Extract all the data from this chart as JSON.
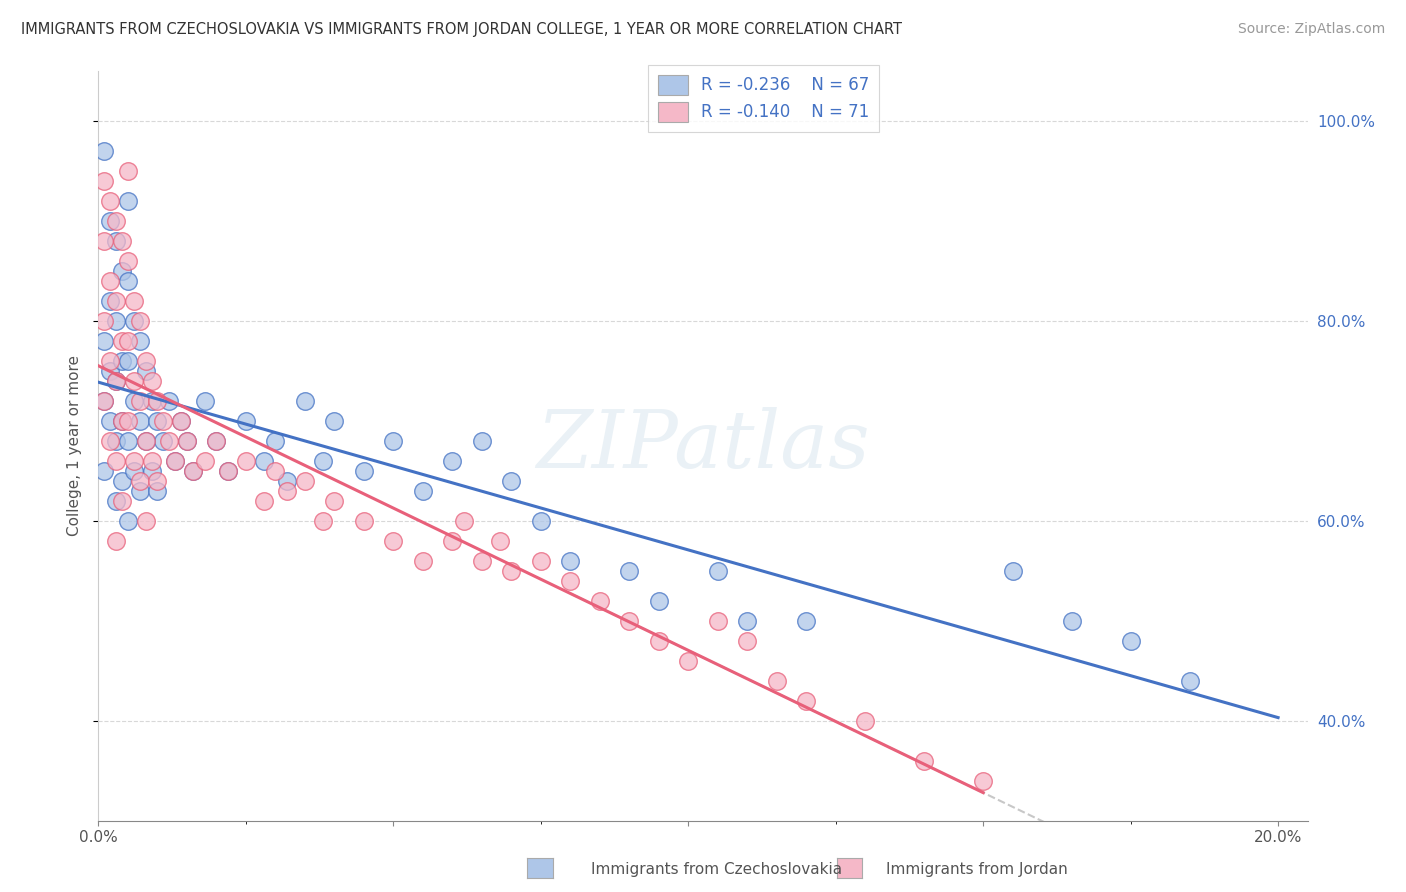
{
  "title": "IMMIGRANTS FROM CZECHOSLOVAKIA VS IMMIGRANTS FROM JORDAN COLLEGE, 1 YEAR OR MORE CORRELATION CHART",
  "source": "Source: ZipAtlas.com",
  "ylabel": "College, 1 year or more",
  "legend_r1": "R = -0.236",
  "legend_n1": "N = 67",
  "legend_r2": "R = -0.140",
  "legend_n2": "N = 71",
  "color_blue": "#aec6e8",
  "color_pink": "#f5b8c8",
  "line_blue": "#4472c4",
  "line_pink": "#e8607a",
  "line_dashed_color": "#c8c8c8",
  "watermark": "ZIPatlas",
  "bottom_label1": "Immigrants from Czechoslovakia",
  "bottom_label2": "Immigrants from Jordan",
  "xlim": [
    0.0,
    0.205
  ],
  "ylim": [
    0.3,
    1.05
  ],
  "blue_scatter_x": [
    0.001,
    0.001,
    0.001,
    0.001,
    0.002,
    0.002,
    0.002,
    0.002,
    0.003,
    0.003,
    0.003,
    0.003,
    0.003,
    0.004,
    0.004,
    0.004,
    0.004,
    0.005,
    0.005,
    0.005,
    0.005,
    0.005,
    0.006,
    0.006,
    0.006,
    0.007,
    0.007,
    0.007,
    0.008,
    0.008,
    0.009,
    0.009,
    0.01,
    0.01,
    0.011,
    0.012,
    0.013,
    0.014,
    0.015,
    0.016,
    0.018,
    0.02,
    0.022,
    0.025,
    0.028,
    0.03,
    0.032,
    0.035,
    0.038,
    0.04,
    0.045,
    0.05,
    0.055,
    0.06,
    0.065,
    0.07,
    0.075,
    0.08,
    0.09,
    0.095,
    0.105,
    0.11,
    0.12,
    0.155,
    0.165,
    0.175,
    0.185
  ],
  "blue_scatter_y": [
    0.97,
    0.78,
    0.72,
    0.65,
    0.9,
    0.82,
    0.75,
    0.7,
    0.88,
    0.8,
    0.74,
    0.68,
    0.62,
    0.85,
    0.76,
    0.7,
    0.64,
    0.92,
    0.84,
    0.76,
    0.68,
    0.6,
    0.8,
    0.72,
    0.65,
    0.78,
    0.7,
    0.63,
    0.75,
    0.68,
    0.72,
    0.65,
    0.7,
    0.63,
    0.68,
    0.72,
    0.66,
    0.7,
    0.68,
    0.65,
    0.72,
    0.68,
    0.65,
    0.7,
    0.66,
    0.68,
    0.64,
    0.72,
    0.66,
    0.7,
    0.65,
    0.68,
    0.63,
    0.66,
    0.68,
    0.64,
    0.6,
    0.56,
    0.55,
    0.52,
    0.55,
    0.5,
    0.5,
    0.55,
    0.5,
    0.48,
    0.44
  ],
  "pink_scatter_x": [
    0.001,
    0.001,
    0.001,
    0.001,
    0.002,
    0.002,
    0.002,
    0.002,
    0.003,
    0.003,
    0.003,
    0.003,
    0.003,
    0.004,
    0.004,
    0.004,
    0.004,
    0.005,
    0.005,
    0.005,
    0.005,
    0.006,
    0.006,
    0.006,
    0.007,
    0.007,
    0.007,
    0.008,
    0.008,
    0.008,
    0.009,
    0.009,
    0.01,
    0.01,
    0.011,
    0.012,
    0.013,
    0.014,
    0.015,
    0.016,
    0.018,
    0.02,
    0.022,
    0.025,
    0.028,
    0.03,
    0.032,
    0.035,
    0.038,
    0.04,
    0.045,
    0.05,
    0.055,
    0.06,
    0.062,
    0.065,
    0.068,
    0.07,
    0.075,
    0.08,
    0.085,
    0.09,
    0.095,
    0.1,
    0.105,
    0.11,
    0.115,
    0.12,
    0.13,
    0.14,
    0.15
  ],
  "pink_scatter_y": [
    0.94,
    0.88,
    0.8,
    0.72,
    0.92,
    0.84,
    0.76,
    0.68,
    0.9,
    0.82,
    0.74,
    0.66,
    0.58,
    0.88,
    0.78,
    0.7,
    0.62,
    0.95,
    0.86,
    0.78,
    0.7,
    0.82,
    0.74,
    0.66,
    0.8,
    0.72,
    0.64,
    0.76,
    0.68,
    0.6,
    0.74,
    0.66,
    0.72,
    0.64,
    0.7,
    0.68,
    0.66,
    0.7,
    0.68,
    0.65,
    0.66,
    0.68,
    0.65,
    0.66,
    0.62,
    0.65,
    0.63,
    0.64,
    0.6,
    0.62,
    0.6,
    0.58,
    0.56,
    0.58,
    0.6,
    0.56,
    0.58,
    0.55,
    0.56,
    0.54,
    0.52,
    0.5,
    0.48,
    0.46,
    0.5,
    0.48,
    0.44,
    0.42,
    0.4,
    0.36,
    0.34
  ]
}
